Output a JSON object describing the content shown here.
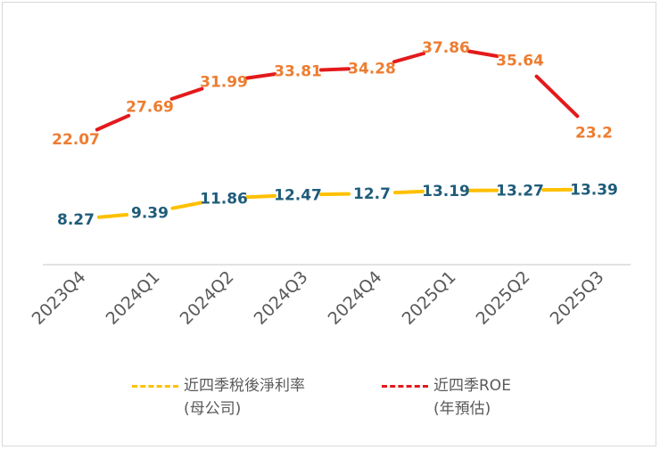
{
  "chart_data": {
    "type": "line",
    "categories": [
      "2023Q4",
      "2024Q1",
      "2024Q2",
      "2024Q3",
      "2024Q4",
      "2025Q1",
      "2025Q2",
      "2025Q3"
    ],
    "series": [
      {
        "name": "近四季稅後淨利率 (母公司)",
        "legend_lines": [
          "近四季稅後淨利率",
          "(母公司)"
        ],
        "values": [
          8.27,
          9.39,
          11.86,
          12.47,
          12.7,
          13.19,
          13.27,
          13.39
        ],
        "labels": [
          "8.27",
          "9.39",
          "11.86",
          "12.47",
          "12.7",
          "13.19",
          "13.27",
          "13.39"
        ],
        "line_color": "#FFC000",
        "label_color": "#1F5C7A"
      },
      {
        "name": "近四季ROE (年預估)",
        "legend_lines": [
          "近四季ROE",
          "(年預估)"
        ],
        "values": [
          22.07,
          27.69,
          31.99,
          33.81,
          34.28,
          37.86,
          35.64,
          23.2
        ],
        "labels": [
          "22.07",
          "27.69",
          "31.99",
          "33.81",
          "34.28",
          "37.86",
          "35.64",
          "23.2"
        ],
        "line_color": "#E31A1C",
        "label_color": "#ED7D31"
      }
    ],
    "legend_position": "bottom",
    "grid": false,
    "y_axis_visible": false
  }
}
